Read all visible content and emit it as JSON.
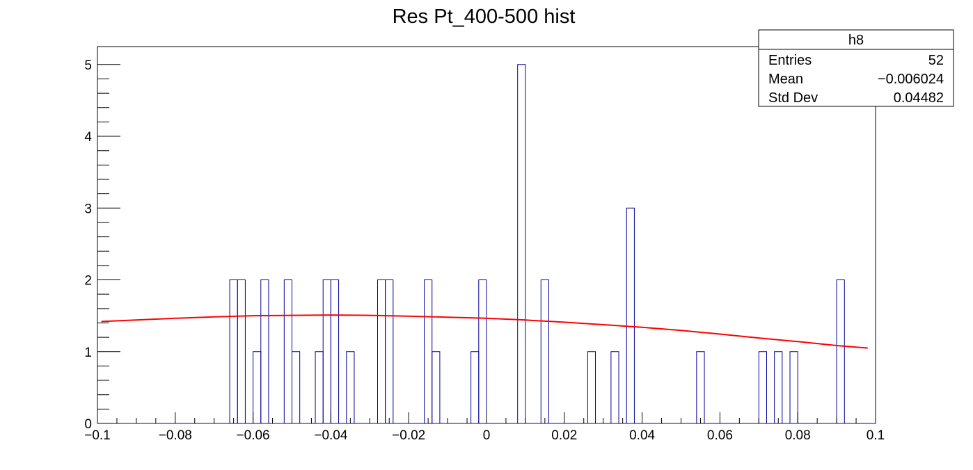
{
  "chart_data": {
    "type": "histogram",
    "title": "Res Pt_400-500 hist",
    "xlabel": "",
    "ylabel": "",
    "xlim": [
      -0.1,
      0.1
    ],
    "ylim": [
      0,
      5.25
    ],
    "n_bins": 100,
    "bin_width": 0.002,
    "x_ticks": [
      "−0.1",
      "−0.08",
      "−0.06",
      "−0.04",
      "−0.02",
      "0",
      "0.02",
      "0.04",
      "0.06",
      "0.08",
      "0.1"
    ],
    "x_tick_values": [
      -0.1,
      -0.08,
      -0.06,
      -0.04,
      -0.02,
      0,
      0.02,
      0.04,
      0.06,
      0.08,
      0.1
    ],
    "y_ticks": [
      "0",
      "1",
      "2",
      "3",
      "4",
      "5"
    ],
    "y_tick_values": [
      0,
      1,
      2,
      3,
      4,
      5
    ],
    "bins": [
      {
        "low": -0.066,
        "count": 2
      },
      {
        "low": -0.064,
        "count": 2
      },
      {
        "low": -0.06,
        "count": 1
      },
      {
        "low": -0.058,
        "count": 2
      },
      {
        "low": -0.052,
        "count": 2
      },
      {
        "low": -0.05,
        "count": 1
      },
      {
        "low": -0.044,
        "count": 1
      },
      {
        "low": -0.042,
        "count": 2
      },
      {
        "low": -0.04,
        "count": 2
      },
      {
        "low": -0.036,
        "count": 1
      },
      {
        "low": -0.028,
        "count": 2
      },
      {
        "low": -0.026,
        "count": 2
      },
      {
        "low": -0.016,
        "count": 2
      },
      {
        "low": -0.014,
        "count": 1
      },
      {
        "low": -0.004,
        "count": 1
      },
      {
        "low": -0.002,
        "count": 2
      },
      {
        "low": 0.008,
        "count": 5
      },
      {
        "low": 0.014,
        "count": 2
      },
      {
        "low": 0.026,
        "count": 1
      },
      {
        "low": 0.032,
        "count": 1
      },
      {
        "low": 0.036,
        "count": 3
      },
      {
        "low": 0.054,
        "count": 1
      },
      {
        "low": 0.07,
        "count": 1
      },
      {
        "low": 0.074,
        "count": 1
      },
      {
        "low": 0.078,
        "count": 1
      },
      {
        "low": 0.09,
        "count": 2
      }
    ],
    "fit": {
      "type": "gaussian",
      "color": "#ff0000",
      "points": [
        [
          -0.099,
          1.42
        ],
        [
          -0.09,
          1.44
        ],
        [
          -0.08,
          1.465
        ],
        [
          -0.07,
          1.485
        ],
        [
          -0.06,
          1.5
        ],
        [
          -0.05,
          1.505
        ],
        [
          -0.04,
          1.51
        ],
        [
          -0.03,
          1.505
        ],
        [
          -0.02,
          1.495
        ],
        [
          -0.01,
          1.48
        ],
        [
          0.0,
          1.465
        ],
        [
          0.01,
          1.44
        ],
        [
          0.02,
          1.41
        ],
        [
          0.03,
          1.375
        ],
        [
          0.04,
          1.34
        ],
        [
          0.05,
          1.295
        ],
        [
          0.06,
          1.245
        ],
        [
          0.07,
          1.19
        ],
        [
          0.08,
          1.14
        ],
        [
          0.09,
          1.085
        ],
        [
          0.098,
          1.05
        ]
      ]
    },
    "hist_color": "#000099"
  },
  "stats": {
    "name": "h8",
    "rows": [
      {
        "label": "Entries",
        "value": "52"
      },
      {
        "label": "Mean",
        "value": "−0.006024"
      },
      {
        "label": "Std Dev",
        "value": "0.04482"
      }
    ]
  }
}
